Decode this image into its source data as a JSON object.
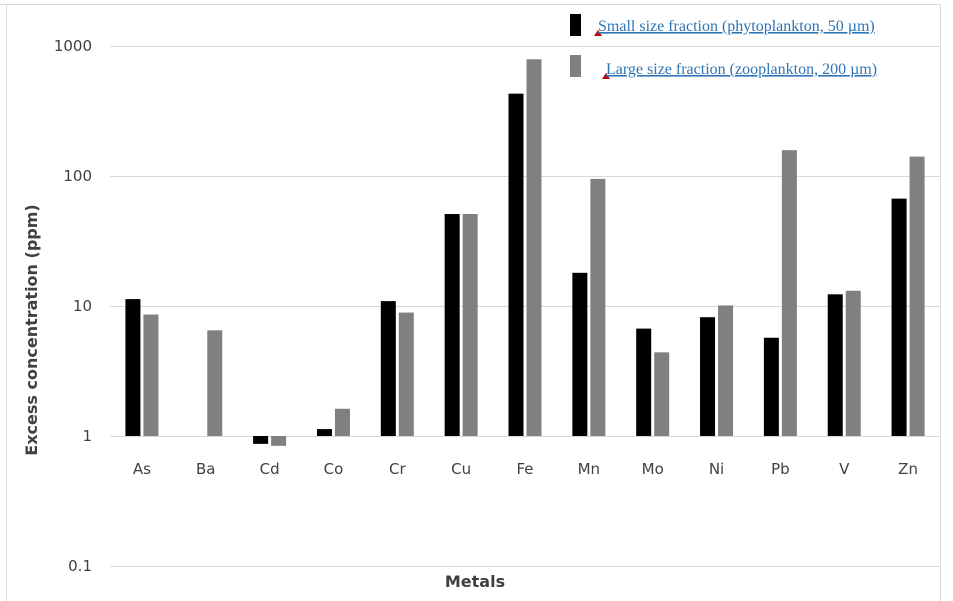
{
  "chart_data": {
    "type": "bar",
    "y_scale": "log",
    "ylim": [
      0.1,
      1000
    ],
    "yticks": [
      "0.1",
      "1",
      "10",
      "100",
      "1000"
    ],
    "ytick_values": [
      0.1,
      1,
      10,
      100,
      1000
    ],
    "xlabel": "Metals",
    "ylabel": "Excess concentration (ppm)",
    "categories": [
      "As",
      "Ba",
      "Cd",
      "Co",
      "Cr",
      "Cu",
      "Fe",
      "Mn",
      "Mo",
      "Ni",
      "Pb",
      "V",
      "Zn"
    ],
    "series": [
      {
        "name": "Small size fraction (phytoplankton, 50 µm)",
        "color": "#000000",
        "values": [
          11.3,
          null,
          0.87,
          1.13,
          10.9,
          51,
          430,
          18,
          6.7,
          8.2,
          5.7,
          12.3,
          67
        ]
      },
      {
        "name": "Large size fraction (zooplankton, 200 µm)",
        "color": "#808080",
        "values": [
          8.6,
          6.5,
          0.84,
          1.62,
          8.9,
          51,
          790,
          95,
          4.4,
          10.1,
          158,
          13.1,
          141
        ]
      }
    ],
    "grid": true,
    "legend_position": "top-right"
  }
}
